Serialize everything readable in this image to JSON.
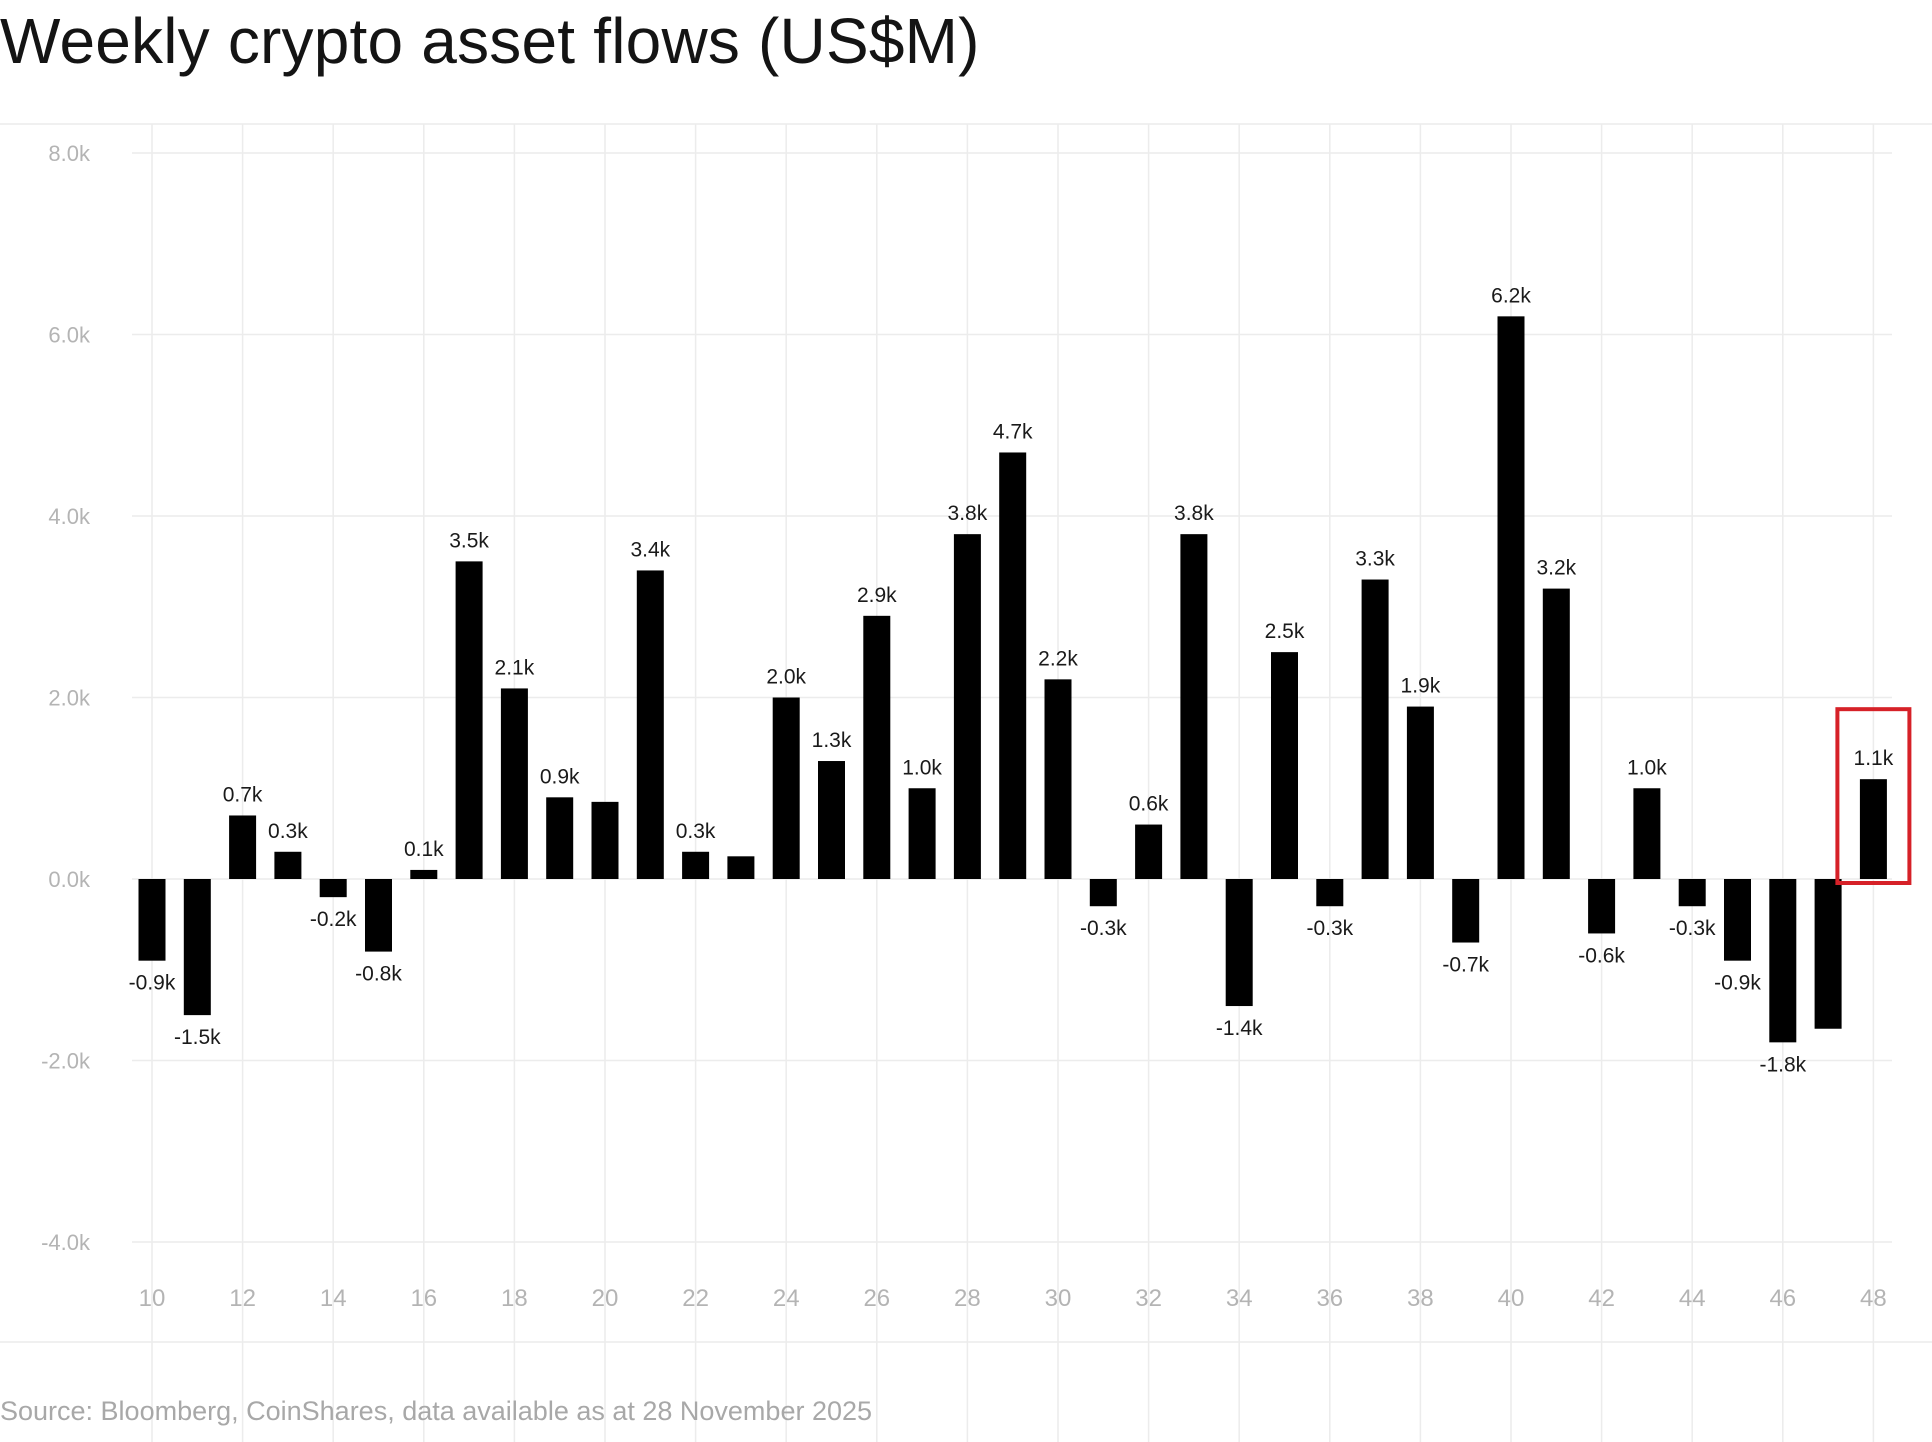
{
  "chart_data": {
    "type": "bar",
    "title": "Weekly crypto asset flows (US$M)",
    "xlabel": "",
    "ylabel": "",
    "ylim": [
      -4.0,
      8.0
    ],
    "y_ticks": [
      -4.0,
      -2.0,
      0.0,
      2.0,
      4.0,
      6.0,
      8.0
    ],
    "y_tick_labels": [
      "-4.0k",
      "-2.0k",
      "0.0k",
      "2.0k",
      "4.0k",
      "6.0k",
      "8.0k"
    ],
    "x_ticks": [
      10,
      12,
      14,
      16,
      18,
      20,
      22,
      24,
      26,
      28,
      30,
      32,
      34,
      36,
      38,
      40,
      42,
      44,
      46,
      48
    ],
    "x_tick_labels": [
      "10",
      "12",
      "14",
      "16",
      "18",
      "20",
      "22",
      "24",
      "26",
      "28",
      "30",
      "32",
      "34",
      "36",
      "38",
      "40",
      "42",
      "44",
      "46",
      "48"
    ],
    "categories": [
      10,
      11,
      12,
      13,
      14,
      15,
      16,
      17,
      18,
      19,
      20,
      21,
      22,
      23,
      24,
      25,
      26,
      27,
      28,
      29,
      30,
      31,
      32,
      33,
      34,
      35,
      36,
      37,
      38,
      39,
      40,
      41,
      42,
      43,
      44,
      45,
      46,
      47,
      48
    ],
    "values": [
      -0.9,
      -1.5,
      0.7,
      0.3,
      -0.2,
      -0.8,
      0.1,
      3.5,
      2.1,
      0.9,
      0.85,
      3.4,
      0.3,
      0.25,
      2.0,
      1.3,
      2.9,
      1.0,
      3.8,
      4.7,
      2.2,
      -0.3,
      0.6,
      3.8,
      -1.4,
      2.5,
      -0.3,
      3.3,
      1.9,
      -0.7,
      6.2,
      3.2,
      -0.6,
      1.0,
      -0.3,
      -0.9,
      -1.8,
      -1.65,
      1.1
    ],
    "data_labels": [
      "-0.9k",
      "-1.5k",
      "0.7k",
      "0.3k",
      "-0.2k",
      "-0.8k",
      "0.1k",
      "3.5k",
      "2.1k",
      "0.9k",
      "",
      "3.4k",
      "0.3k",
      "",
      "2.0k",
      "1.3k",
      "2.9k",
      "1.0k",
      "3.8k",
      "4.7k",
      "2.2k",
      "-0.3k",
      "0.6k",
      "3.8k",
      "-1.4k",
      "2.5k",
      "-0.3k",
      "3.3k",
      "1.9k",
      "-0.7k",
      "6.2k",
      "3.2k",
      "-0.6k",
      "1.0k",
      "-0.3k",
      "-0.9k",
      "-1.8k",
      "",
      "1.1k"
    ],
    "highlight_index": 38,
    "grid": true,
    "bar_color": "#000000",
    "grid_color": "#ececec",
    "highlight_color": "#d62128",
    "source": "Source: Bloomberg, CoinShares, data available as at 28 November 2025"
  }
}
